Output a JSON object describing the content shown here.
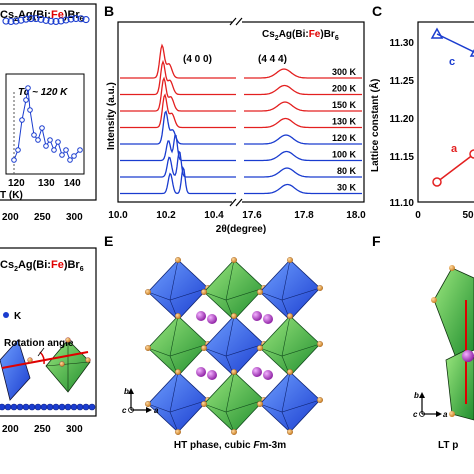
{
  "panels": {
    "A": {
      "compound_prefix": "Cs",
      "compound_sub1": "2",
      "compound_mid": "Ag(Bi:",
      "compound_fe": "Fe",
      "compound_end": ")Br",
      "compound_sub2": "6",
      "inset_tc": "Tc ~ 120 K",
      "inset_x_ticks": [
        "120",
        "130",
        "140"
      ],
      "inset_x_label": "T (K)",
      "x_ticks": [
        "200",
        "250",
        "300"
      ]
    },
    "B": {
      "letter": "B",
      "compound_prefix": "Cs",
      "compound_sub1": "2",
      "compound_mid": "Ag(Bi:",
      "compound_fe": "Fe",
      "compound_end": ")Br",
      "compound_sub2": "6",
      "peak1": "(4 0 0)",
      "peak2": "(4 4 4)",
      "ylabel": "Intensity (a.u.)",
      "xlabel": "2θ(degree)",
      "x_ticks_left": [
        "10.0",
        "10.2",
        "10.4"
      ],
      "x_ticks_right": [
        "17.6",
        "17.8",
        "18.0"
      ],
      "temps": [
        "300 K",
        "200 K",
        "150 K",
        "130 K",
        "120 K",
        "100 K",
        "80 K",
        "30 K"
      ]
    },
    "C": {
      "letter": "C",
      "ylabel": "Lattice constant (Å)",
      "y_ticks": [
        "11.30",
        "11.25",
        "11.20",
        "11.15",
        "11.10"
      ],
      "x_ticks": [
        "0",
        "50"
      ],
      "label_c": "c",
      "label_a": "a"
    },
    "D": {
      "compound_prefix": "Cs",
      "compound_sub1": "2",
      "compound_mid": "Ag(Bi:",
      "compound_fe": "Fe",
      "compound_end": ")Br",
      "compound_sub2": "6",
      "k_label": "K",
      "rotation_label": "Rotation angle",
      "x_ticks": [
        "200",
        "250",
        "300"
      ]
    },
    "E": {
      "letter": "E",
      "caption_pre": "HT phase, cubic ",
      "caption_it": "F",
      "caption_post": "m-3m",
      "axis_b": "b",
      "axis_a": "a",
      "axis_c": "c"
    },
    "F": {
      "letter": "F",
      "caption": "LT p",
      "axis_b": "b",
      "axis_a": "a",
      "axis_c": "c"
    }
  },
  "colors": {
    "red": "#e32020",
    "blue": "#1a3ccf",
    "green": "#2fb84a",
    "orange": "#e8a040",
    "purple": "#b040c0",
    "fe_red": "#e00000"
  }
}
